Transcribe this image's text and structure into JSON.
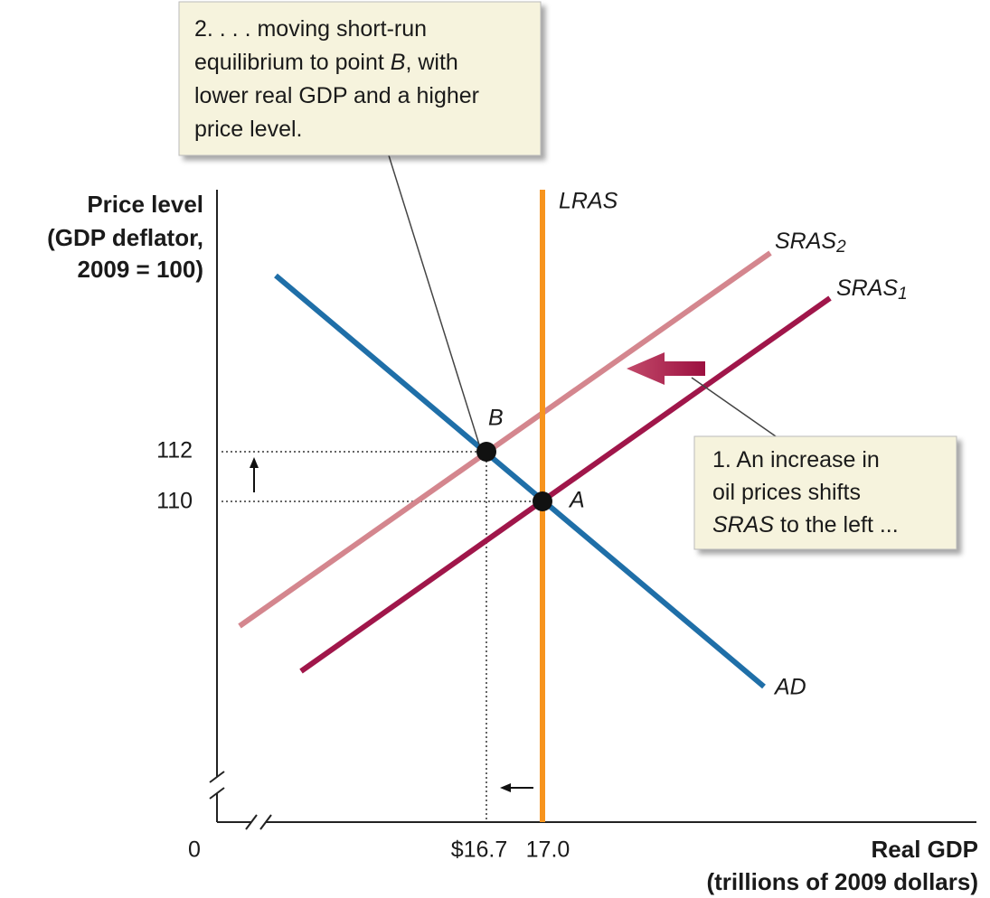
{
  "y_axis_label": [
    "Price level",
    "(GDP deflator,",
    "2009 = 100)"
  ],
  "x_axis_label": [
    "Real GDP",
    "(trillions of 2009 dollars)"
  ],
  "origin": "0",
  "y_ticks": [
    "112",
    "110"
  ],
  "x_ticks": [
    "$16.7",
    "17.0"
  ],
  "curves": {
    "lras": "LRAS",
    "sras2": {
      "text": "SRAS",
      "subscript": "2"
    },
    "sras1": {
      "text": "SRAS",
      "subscript": "1"
    },
    "ad": "AD"
  },
  "points": {
    "b": "B",
    "a": "A"
  },
  "callout_1": [
    [
      "1. An increase in"
    ],
    [
      "oil prices shifts"
    ],
    [
      "SRAS",
      " to the left ..."
    ]
  ],
  "callout_2": [
    [
      "2. . . . moving short-run"
    ],
    [
      "equilibrium to point ",
      "B",
      ", with"
    ],
    [
      "lower real GDP and a higher"
    ],
    [
      "price level."
    ]
  ]
}
